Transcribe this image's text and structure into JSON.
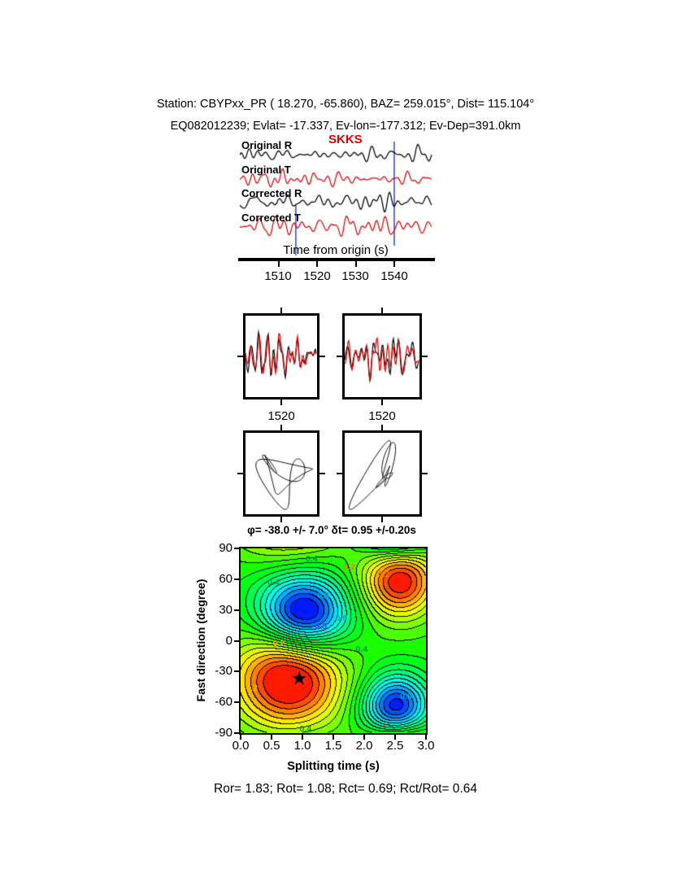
{
  "page": {
    "bg": "#ffffff",
    "accent_red": "#dd0000",
    "marker_blue": "#3344bb"
  },
  "header": {
    "line1": "Station: CBYPxx_PR (  18.270,  -65.860), BAZ=  259.015°, Dist=  115.104°",
    "line2": "EQ082012239; Evlat= -17.337, Ev-lon=-177.312; Ev-Dep=391.0km"
  },
  "waveform_panel": {
    "phase_label": "SKKS",
    "axis_label": "Time from origin (s)",
    "ticks": [
      "1510",
      "1520",
      "1530",
      "1540"
    ],
    "traces": [
      {
        "label": "Original R",
        "color": "#000000"
      },
      {
        "label": "Original T",
        "color": "#dd0000"
      },
      {
        "label": "Corrected R",
        "color": "#000000"
      },
      {
        "label": "Corrected T",
        "color": "#dd0000"
      }
    ]
  },
  "zoom_panels": [
    {
      "tick": "1520"
    },
    {
      "tick": "1520"
    }
  ],
  "contour": {
    "title": "φ= -38.0 +/- 7.0°  δt= 0.95 +/-0.20s",
    "xlabel": "Splitting time (s)",
    "ylabel": "Fast direction (degree)",
    "xticks": [
      "0.0",
      "0.5",
      "1.0",
      "1.5",
      "2.0",
      "2.5",
      "3.0"
    ],
    "yticks": [
      "90",
      "60",
      "30",
      "0",
      "-30",
      "-60",
      "-90"
    ],
    "star": {
      "x": 0.95,
      "phi": -38
    },
    "star_glyph": "★",
    "labels": [
      {
        "x": 0.53,
        "phi": 57,
        "text": "0.4",
        "color": "#009944"
      },
      {
        "x": 1.15,
        "phi": 80,
        "text": "0.4",
        "color": "#009944"
      },
      {
        "x": 1.76,
        "phi": 72,
        "text": "0.2",
        "color": "#ee7700"
      },
      {
        "x": 2.32,
        "phi": 65,
        "text": "0.2",
        "color": "#ee7700"
      },
      {
        "x": 1.34,
        "phi": 44,
        "text": "0.6",
        "color": "#00aacc"
      },
      {
        "x": 1.63,
        "phi": 22,
        "text": "0.6",
        "color": "#00aacc"
      },
      {
        "x": 1.3,
        "phi": 14,
        "text": "0.8",
        "color": "#3355ee"
      },
      {
        "x": 0.62,
        "phi": -3,
        "text": "0.2",
        "color": "#ffaa00"
      },
      {
        "x": 1.96,
        "phi": -8,
        "text": "0.4",
        "color": "#009944"
      },
      {
        "x": 0.18,
        "phi": -46,
        "text": "0.2",
        "color": "#ffbb00"
      },
      {
        "x": 2.68,
        "phi": -54,
        "text": "0.6",
        "color": "#00aacc"
      },
      {
        "x": 1.05,
        "phi": -86,
        "text": "0.4",
        "color": "#009944"
      }
    ]
  },
  "footer": {
    "text": "Ror= 1.83; Rot= 1.08; Rct= 0.69; Rct/Rot= 0.64"
  },
  "chart_data": [
    {
      "type": "line",
      "name": "seismogram-traces",
      "phase": "SKKS",
      "xlabel": "Time from origin (s)",
      "x_ticks_s": [
        1510,
        1520,
        1530,
        1540
      ],
      "x_range_s": [
        1500,
        1549
      ],
      "series": [
        {
          "name": "Original R",
          "color": "#000000"
        },
        {
          "name": "Original T",
          "color": "#dd0000"
        },
        {
          "name": "Corrected R",
          "color": "#000000"
        },
        {
          "name": "Corrected T",
          "color": "#dd0000"
        }
      ],
      "window_markers_s": [
        1514.5,
        1540
      ],
      "marker_color": "#3344bb"
    },
    {
      "type": "line",
      "name": "analysis-window-waveforms",
      "panels": [
        {
          "x_tick_s": 1520,
          "series": [
            "component-1 (black)",
            "component-2 (red)"
          ]
        },
        {
          "x_tick_s": 1520,
          "series": [
            "component-1 (black)",
            "component-2 (red)"
          ]
        }
      ]
    },
    {
      "type": "line",
      "name": "particle-motion-hodograms",
      "panels": 2,
      "color": "#000000"
    },
    {
      "type": "heatmap",
      "name": "splitting-error-surface",
      "title": "φ= -38.0 +/- 7.0°  δt= 0.95 +/-0.20s",
      "xlabel": "Splitting time (s)",
      "ylabel": "Fast direction (degree)",
      "xlim": [
        0,
        3
      ],
      "ylim": [
        -90,
        90
      ],
      "xticks": [
        0.0,
        0.5,
        1.0,
        1.5,
        2.0,
        2.5,
        3.0
      ],
      "yticks": [
        90,
        60,
        30,
        0,
        -30,
        -60,
        -90
      ],
      "contour_label_values": [
        0.2,
        0.4,
        0.6,
        0.8
      ],
      "colormap": "rainbow (blue=min, green=mid, red=max)",
      "best_solution": {
        "phi_deg": -38.0,
        "phi_err_deg": 7.0,
        "dt_s": 0.95,
        "dt_err_s": 0.2
      },
      "best_solution_marker": {
        "x": 0.95,
        "phi": -38,
        "glyph": "★"
      }
    },
    {
      "type": "table",
      "name": "quality-ratios",
      "values": {
        "Ror": 1.83,
        "Rot": 1.08,
        "Rct": 0.69,
        "Rct/Rot": 0.64
      }
    }
  ]
}
